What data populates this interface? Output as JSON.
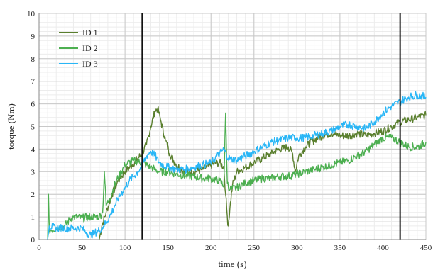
{
  "chart_data": {
    "type": "line",
    "xlabel": "time (s)",
    "ylabel": "torque (Nm)",
    "xlim": [
      0,
      450
    ],
    "ylim": [
      0,
      10
    ],
    "xticks": [
      0,
      50,
      100,
      150,
      200,
      250,
      300,
      350,
      400,
      450
    ],
    "yticks": [
      0,
      1,
      2,
      3,
      4,
      5,
      6,
      7,
      8,
      9,
      10
    ],
    "grid": true,
    "legend_position": "top-left",
    "vertical_lines": [
      120,
      420
    ],
    "series": [
      {
        "name": "ID 1",
        "color": "#5a7f2e",
        "points": [
          [
            70,
            0
          ],
          [
            73,
            0.6
          ],
          [
            78,
            1.2
          ],
          [
            85,
            2.0
          ],
          [
            92,
            2.6
          ],
          [
            100,
            3.0
          ],
          [
            108,
            3.3
          ],
          [
            115,
            3.6
          ],
          [
            120,
            3.8
          ],
          [
            125,
            4.2
          ],
          [
            130,
            5.0
          ],
          [
            135,
            5.7
          ],
          [
            138,
            5.8
          ],
          [
            142,
            5.2
          ],
          [
            147,
            4.4
          ],
          [
            152,
            3.8
          ],
          [
            158,
            3.4
          ],
          [
            165,
            3.1
          ],
          [
            172,
            3.0
          ],
          [
            180,
            3.0
          ],
          [
            190,
            3.1
          ],
          [
            200,
            3.3
          ],
          [
            210,
            3.4
          ],
          [
            215,
            3.2
          ],
          [
            217,
            2.0
          ],
          [
            219,
            1.0
          ],
          [
            220,
            0.6
          ],
          [
            222,
            1.4
          ],
          [
            225,
            2.4
          ],
          [
            230,
            3.0
          ],
          [
            240,
            3.2
          ],
          [
            250,
            3.4
          ],
          [
            260,
            3.6
          ],
          [
            270,
            3.8
          ],
          [
            280,
            4.0
          ],
          [
            290,
            4.1
          ],
          [
            295,
            3.8
          ],
          [
            298,
            3.0
          ],
          [
            302,
            3.7
          ],
          [
            310,
            4.1
          ],
          [
            320,
            4.4
          ],
          [
            330,
            4.6
          ],
          [
            340,
            4.7
          ],
          [
            350,
            4.6
          ],
          [
            360,
            4.6
          ],
          [
            370,
            4.7
          ],
          [
            380,
            4.6
          ],
          [
            390,
            4.7
          ],
          [
            400,
            4.8
          ],
          [
            410,
            5.0
          ],
          [
            420,
            5.2
          ],
          [
            430,
            5.3
          ],
          [
            440,
            5.4
          ],
          [
            450,
            5.5
          ]
        ]
      },
      {
        "name": "ID 2",
        "color": "#4caf50",
        "points": [
          [
            10,
            0
          ],
          [
            11,
            2.0
          ],
          [
            12,
            0.4
          ],
          [
            20,
            0.5
          ],
          [
            30,
            0.6
          ],
          [
            36,
            0.9
          ],
          [
            40,
            1.0
          ],
          [
            50,
            0.95
          ],
          [
            60,
            1.0
          ],
          [
            70,
            1.0
          ],
          [
            74,
            1.2
          ],
          [
            76,
            3.0
          ],
          [
            78,
            1.5
          ],
          [
            82,
            1.8
          ],
          [
            90,
            2.6
          ],
          [
            100,
            3.3
          ],
          [
            110,
            3.5
          ],
          [
            120,
            3.4
          ],
          [
            130,
            3.2
          ],
          [
            140,
            3.0
          ],
          [
            150,
            3.0
          ],
          [
            160,
            2.9
          ],
          [
            170,
            2.8
          ],
          [
            180,
            2.8
          ],
          [
            190,
            2.7
          ],
          [
            200,
            2.7
          ],
          [
            210,
            2.6
          ],
          [
            215,
            2.4
          ],
          [
            217,
            5.6
          ],
          [
            219,
            2.5
          ],
          [
            222,
            2.2
          ],
          [
            230,
            2.3
          ],
          [
            240,
            2.5
          ],
          [
            250,
            2.6
          ],
          [
            260,
            2.7
          ],
          [
            270,
            2.7
          ],
          [
            280,
            2.8
          ],
          [
            290,
            2.8
          ],
          [
            300,
            2.9
          ],
          [
            310,
            3.0
          ],
          [
            320,
            3.1
          ],
          [
            330,
            3.2
          ],
          [
            340,
            3.3
          ],
          [
            350,
            3.4
          ],
          [
            360,
            3.5
          ],
          [
            370,
            3.7
          ],
          [
            380,
            3.9
          ],
          [
            390,
            4.2
          ],
          [
            400,
            4.5
          ],
          [
            410,
            4.5
          ],
          [
            420,
            4.3
          ],
          [
            430,
            4.1
          ],
          [
            440,
            4.1
          ],
          [
            450,
            4.3
          ]
        ]
      },
      {
        "name": "ID 3",
        "color": "#29b6f6",
        "points": [
          [
            10,
            0
          ],
          [
            12,
            0.6
          ],
          [
            20,
            0.5
          ],
          [
            30,
            0.5
          ],
          [
            40,
            0.5
          ],
          [
            50,
            0.5
          ],
          [
            55,
            0.3
          ],
          [
            60,
            0.2
          ],
          [
            65,
            0.3
          ],
          [
            70,
            0.4
          ],
          [
            75,
            0.6
          ],
          [
            82,
            1.0
          ],
          [
            88,
            1.5
          ],
          [
            95,
            2.0
          ],
          [
            100,
            2.3
          ],
          [
            105,
            2.6
          ],
          [
            110,
            2.8
          ],
          [
            115,
            3.0
          ],
          [
            120,
            3.3
          ],
          [
            125,
            3.7
          ],
          [
            130,
            3.9
          ],
          [
            135,
            3.7
          ],
          [
            140,
            3.4
          ],
          [
            150,
            3.2
          ],
          [
            160,
            3.1
          ],
          [
            170,
            3.1
          ],
          [
            180,
            3.2
          ],
          [
            190,
            3.3
          ],
          [
            200,
            3.4
          ],
          [
            205,
            3.6
          ],
          [
            210,
            3.8
          ],
          [
            215,
            4.0
          ],
          [
            220,
            3.6
          ],
          [
            230,
            3.5
          ],
          [
            240,
            3.7
          ],
          [
            250,
            3.9
          ],
          [
            260,
            4.1
          ],
          [
            270,
            4.3
          ],
          [
            280,
            4.4
          ],
          [
            290,
            4.5
          ],
          [
            300,
            4.5
          ],
          [
            310,
            4.5
          ],
          [
            320,
            4.6
          ],
          [
            330,
            4.7
          ],
          [
            340,
            4.8
          ],
          [
            350,
            5.0
          ],
          [
            360,
            5.1
          ],
          [
            370,
            5.0
          ],
          [
            380,
            4.9
          ],
          [
            390,
            5.2
          ],
          [
            400,
            5.6
          ],
          [
            410,
            5.9
          ],
          [
            420,
            6.1
          ],
          [
            430,
            6.3
          ],
          [
            440,
            6.4
          ],
          [
            450,
            6.3
          ]
        ]
      }
    ]
  }
}
